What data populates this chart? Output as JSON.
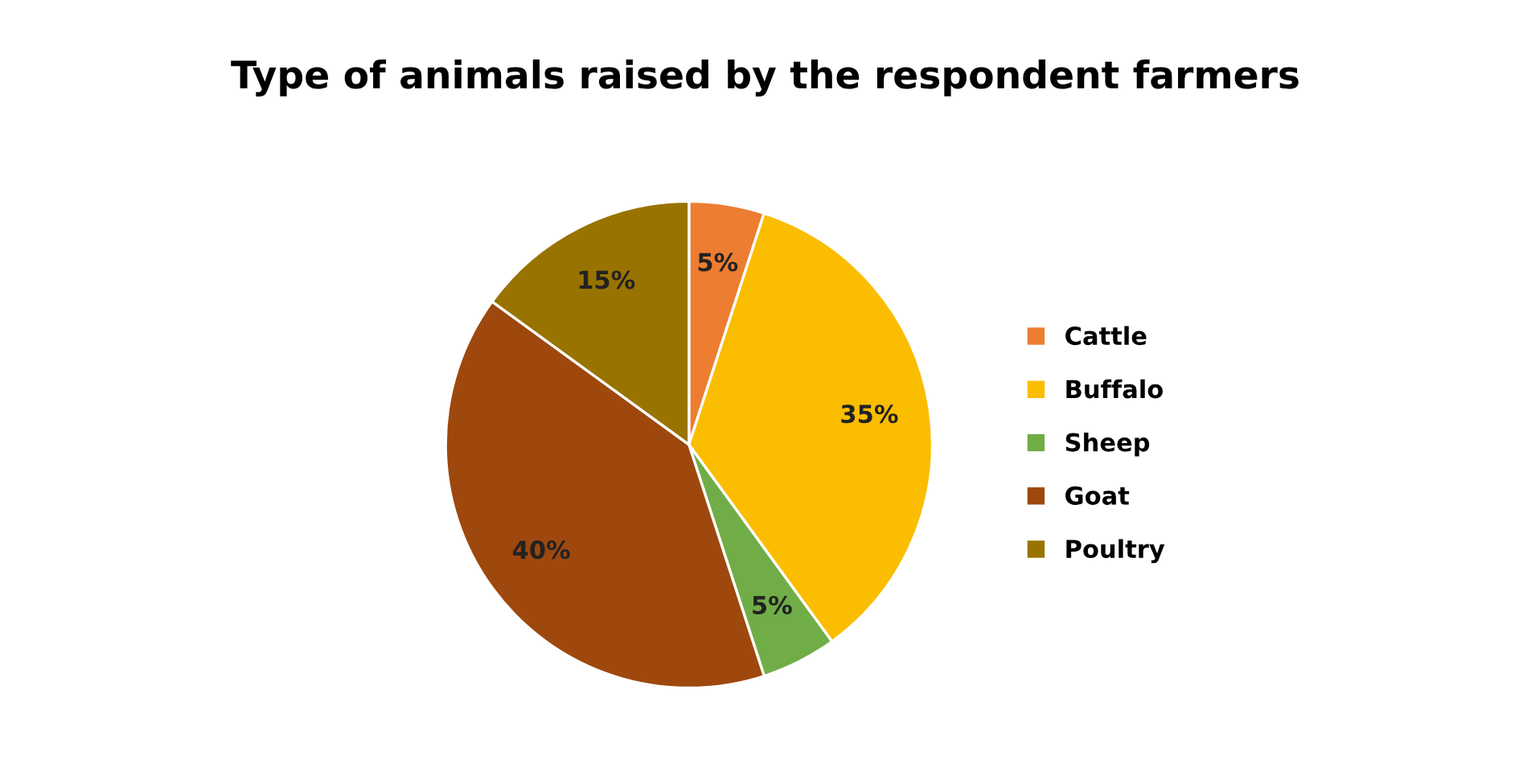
{
  "chart_data": {
    "type": "pie",
    "title": "Type of animals raised by the respondent farmers",
    "categories": [
      "Cattle",
      "Buffalo",
      "Sheep",
      "Goat",
      "Poultry"
    ],
    "values": [
      5,
      35,
      5,
      40,
      15
    ],
    "colors": [
      "#ed7d31",
      "#fbbd00",
      "#70ad47",
      "#9e480e",
      "#997300"
    ],
    "value_labels": [
      "5%",
      "35%",
      "5%",
      "40%",
      "15%"
    ],
    "legend": "right"
  }
}
